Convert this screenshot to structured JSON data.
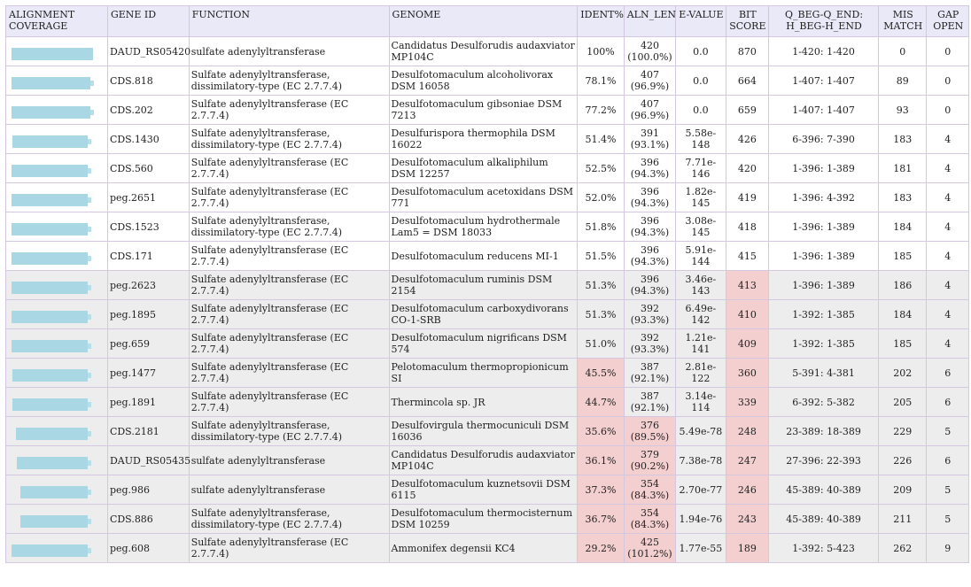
{
  "headers": {
    "coverage": "ALIGNMENT COVERAGE",
    "gene_id": "GENE ID",
    "function": "FUNCTION",
    "genome": "GENOME",
    "ident": "IDENT%",
    "aln_len": "ALN_LEN",
    "evalue": "E-VALUE",
    "bitscore": "BIT SCORE",
    "range": "Q_BEG-Q_END: H_BEG-H_END",
    "mismatch": "MIS MATCH",
    "gapopen": "GAP OPEN"
  },
  "colors": {
    "header_bg": "#e9e9f7",
    "row_alt_bg": "#ededed",
    "highlight": "#f4cfcf",
    "coverage_bar": "#a9d8e4"
  },
  "rows": [
    {
      "gene": "DAUD_RS05420",
      "func": "sulfate adenylyltransferase",
      "genome": "Candidatus Desulforudis audaxviator MP104C",
      "ident": "100%",
      "aln": "420",
      "alnp": "(100.0%)",
      "ev": "0.0",
      "bit": "870",
      "range": "1-420: 1-420",
      "mis": "0",
      "gap": "0",
      "cov": [
        0.0,
        1.0
      ],
      "bg": "w",
      "hl": []
    },
    {
      "gene": "CDS.818",
      "func": "Sulfate adenylyltransferase, dissimilatory-type (EC 2.7.7.4)",
      "genome": "Desulfotomaculum alcoholivorax DSM 16058",
      "ident": "78.1%",
      "aln": "407",
      "alnp": "(96.9%)",
      "ev": "0.0",
      "bit": "664",
      "range": "1-407: 1-407",
      "mis": "89",
      "gap": "0",
      "cov": [
        0.0,
        0.97
      ],
      "bg": "w",
      "hl": []
    },
    {
      "gene": "CDS.202",
      "func": "Sulfate adenylyltransferase (EC 2.7.7.4)",
      "genome": "Desulfotomaculum gibsoniae DSM 7213",
      "ident": "77.2%",
      "aln": "407",
      "alnp": "(96.9%)",
      "ev": "0.0",
      "bit": "659",
      "range": "1-407: 1-407",
      "mis": "93",
      "gap": "0",
      "cov": [
        0.0,
        0.97
      ],
      "bg": "w",
      "hl": []
    },
    {
      "gene": "CDS.1430",
      "func": "Sulfate adenylyltransferase, dissimilatory-type (EC 2.7.7.4)",
      "genome": "Desulfurispora thermophila DSM 16022",
      "ident": "51.4%",
      "aln": "391",
      "alnp": "(93.1%)",
      "ev": "5.58e-148",
      "bit": "426",
      "range": "6-396: 7-390",
      "mis": "183",
      "gap": "4",
      "cov": [
        0.01,
        0.94
      ],
      "bg": "w",
      "hl": []
    },
    {
      "gene": "CDS.560",
      "func": "Sulfate adenylyltransferase (EC 2.7.7.4)",
      "genome": "Desulfotomaculum alkaliphilum DSM 12257",
      "ident": "52.5%",
      "aln": "396",
      "alnp": "(94.3%)",
      "ev": "7.71e-146",
      "bit": "420",
      "range": "1-396: 1-389",
      "mis": "181",
      "gap": "4",
      "cov": [
        0.0,
        0.94
      ],
      "bg": "w",
      "hl": []
    },
    {
      "gene": "peg.2651",
      "func": "Sulfate adenylyltransferase (EC 2.7.7.4)",
      "genome": "Desulfotomaculum acetoxidans DSM 771",
      "ident": "52.0%",
      "aln": "396",
      "alnp": "(94.3%)",
      "ev": "1.82e-145",
      "bit": "419",
      "range": "1-396: 4-392",
      "mis": "183",
      "gap": "4",
      "cov": [
        0.0,
        0.94
      ],
      "bg": "w",
      "hl": []
    },
    {
      "gene": "CDS.1523",
      "func": "Sulfate adenylyltransferase, dissimilatory-type (EC 2.7.7.4)",
      "genome": "Desulfotomaculum hydrothermale Lam5 = DSM 18033",
      "ident": "51.8%",
      "aln": "396",
      "alnp": "(94.3%)",
      "ev": "3.08e-145",
      "bit": "418",
      "range": "1-396: 1-389",
      "mis": "184",
      "gap": "4",
      "cov": [
        0.0,
        0.94
      ],
      "bg": "w",
      "hl": []
    },
    {
      "gene": "CDS.171",
      "func": "Sulfate adenylyltransferase (EC 2.7.7.4)",
      "genome": "Desulfotomaculum reducens MI-1",
      "ident": "51.5%",
      "aln": "396",
      "alnp": "(94.3%)",
      "ev": "5.91e-144",
      "bit": "415",
      "range": "1-396: 1-389",
      "mis": "185",
      "gap": "4",
      "cov": [
        0.0,
        0.94
      ],
      "bg": "w",
      "hl": []
    },
    {
      "gene": "peg.2623",
      "func": "Sulfate adenylyltransferase (EC 2.7.7.4)",
      "genome": "Desulfotomaculum ruminis DSM 2154",
      "ident": "51.3%",
      "aln": "396",
      "alnp": "(94.3%)",
      "ev": "3.46e-143",
      "bit": "413",
      "range": "1-396: 1-389",
      "mis": "186",
      "gap": "4",
      "cov": [
        0.0,
        0.94
      ],
      "bg": "g",
      "hl": [
        "bit"
      ]
    },
    {
      "gene": "peg.1895",
      "func": "Sulfate adenylyltransferase (EC 2.7.7.4)",
      "genome": "Desulfotomaculum carboxydivorans CO-1-SRB",
      "ident": "51.3%",
      "aln": "392",
      "alnp": "(93.3%)",
      "ev": "6.49e-142",
      "bit": "410",
      "range": "1-392: 1-385",
      "mis": "184",
      "gap": "4",
      "cov": [
        0.0,
        0.93
      ],
      "bg": "g",
      "hl": [
        "bit"
      ]
    },
    {
      "gene": "peg.659",
      "func": "Sulfate adenylyltransferase (EC 2.7.7.4)",
      "genome": "Desulfotomaculum nigrificans DSM 574",
      "ident": "51.0%",
      "aln": "392",
      "alnp": "(93.3%)",
      "ev": "1.21e-141",
      "bit": "409",
      "range": "1-392: 1-385",
      "mis": "185",
      "gap": "4",
      "cov": [
        0.0,
        0.93
      ],
      "bg": "g",
      "hl": [
        "bit"
      ]
    },
    {
      "gene": "peg.1477",
      "func": "Sulfate adenylyltransferase (EC 2.7.7.4)",
      "genome": "Pelotomaculum thermopropionicum SI",
      "ident": "45.5%",
      "aln": "387",
      "alnp": "(92.1%)",
      "ev": "2.81e-122",
      "bit": "360",
      "range": "5-391: 4-381",
      "mis": "202",
      "gap": "6",
      "cov": [
        0.01,
        0.93
      ],
      "bg": "g",
      "hl": [
        "ident",
        "bit"
      ]
    },
    {
      "gene": "peg.1891",
      "func": "Sulfate adenylyltransferase (EC 2.7.7.4)",
      "genome": "Thermincola sp. JR",
      "ident": "44.7%",
      "aln": "387",
      "alnp": "(92.1%)",
      "ev": "3.14e-114",
      "bit": "339",
      "range": "6-392: 5-382",
      "mis": "205",
      "gap": "6",
      "cov": [
        0.01,
        0.93
      ],
      "bg": "g",
      "hl": [
        "ident",
        "bit"
      ]
    },
    {
      "gene": "CDS.2181",
      "func": "Sulfate adenylyltransferase, dissimilatory-type (EC 2.7.7.4)",
      "genome": "Desulfovirgula thermocuniculi DSM 16036",
      "ident": "35.6%",
      "aln": "376",
      "alnp": "(89.5%)",
      "ev": "5.49e-78",
      "bit": "248",
      "range": "23-389: 18-389",
      "mis": "229",
      "gap": "5",
      "cov": [
        0.05,
        0.93
      ],
      "bg": "g",
      "hl": [
        "ident",
        "aln",
        "bit"
      ]
    },
    {
      "gene": "DAUD_RS05435",
      "func": "sulfate adenylyltransferase",
      "genome": "Candidatus Desulforudis audaxviator MP104C",
      "ident": "36.1%",
      "aln": "379",
      "alnp": "(90.2%)",
      "ev": "7.38e-78",
      "bit": "247",
      "range": "27-396: 22-393",
      "mis": "226",
      "gap": "6",
      "cov": [
        0.06,
        0.94
      ],
      "bg": "g",
      "hl": [
        "ident",
        "aln",
        "bit"
      ]
    },
    {
      "gene": "peg.986",
      "func": "sulfate adenylyltransferase",
      "genome": "Desulfotomaculum kuznetsovii DSM 6115",
      "ident": "37.3%",
      "aln": "354",
      "alnp": "(84.3%)",
      "ev": "2.70e-77",
      "bit": "246",
      "range": "45-389: 40-389",
      "mis": "209",
      "gap": "5",
      "cov": [
        0.11,
        0.93
      ],
      "bg": "g",
      "hl": [
        "ident",
        "aln",
        "bit"
      ]
    },
    {
      "gene": "CDS.886",
      "func": "Sulfate adenylyltransferase, dissimilatory-type (EC 2.7.7.4)",
      "genome": "Desulfotomaculum thermocisternum DSM 10259",
      "ident": "36.7%",
      "aln": "354",
      "alnp": "(84.3%)",
      "ev": "1.94e-76",
      "bit": "243",
      "range": "45-389: 40-389",
      "mis": "211",
      "gap": "5",
      "cov": [
        0.11,
        0.93
      ],
      "bg": "g",
      "hl": [
        "ident",
        "aln",
        "bit"
      ]
    },
    {
      "gene": "peg.608",
      "func": "Sulfate adenylyltransferase (EC 2.7.7.4)",
      "genome": "Ammonifex degensii KC4",
      "ident": "29.2%",
      "aln": "425",
      "alnp": "(101.2%)",
      "ev": "1.77e-55",
      "bit": "189",
      "range": "1-392: 5-423",
      "mis": "262",
      "gap": "9",
      "cov": [
        0.0,
        0.93
      ],
      "bg": "g",
      "hl": [
        "ident",
        "aln",
        "bit"
      ]
    }
  ]
}
